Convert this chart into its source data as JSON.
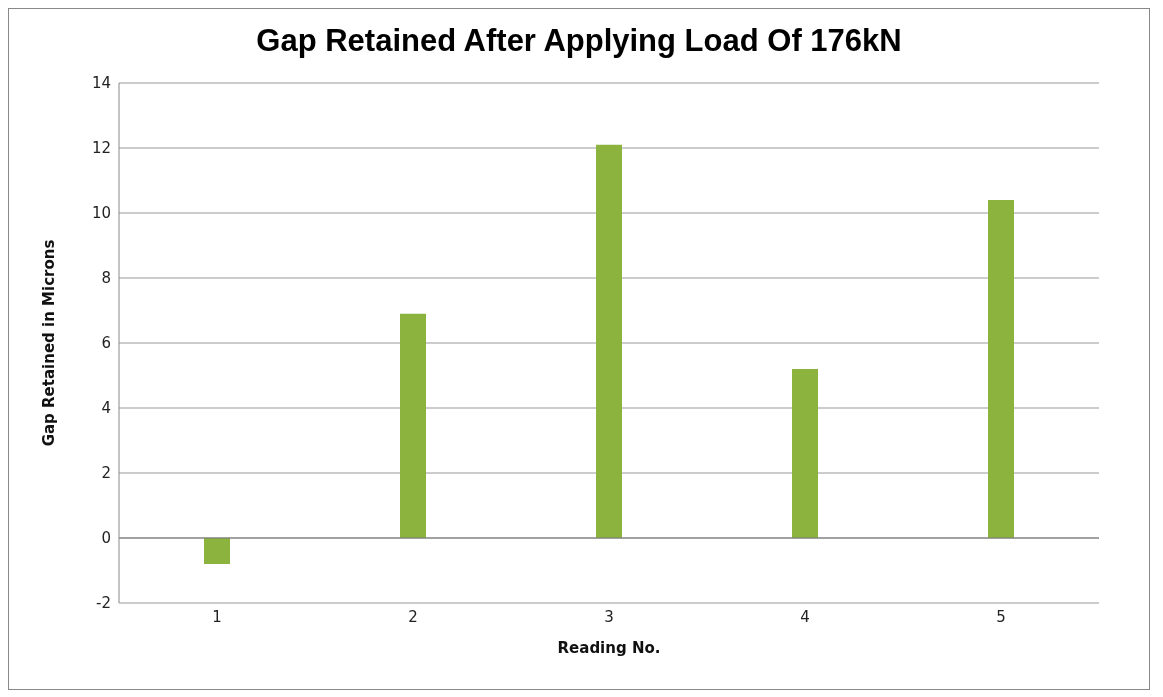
{
  "chart_data": {
    "type": "bar",
    "title": "Gap Retained After Applying Load Of 176kN",
    "xlabel": "Reading No.",
    "ylabel": "Gap Retained in Microns",
    "categories": [
      "1",
      "2",
      "3",
      "4",
      "5"
    ],
    "values": [
      -0.8,
      6.9,
      12.1,
      5.2,
      10.4
    ],
    "color": "#8db33f",
    "ylim": [
      -2,
      14
    ],
    "yticks": [
      -2,
      0,
      2,
      4,
      6,
      8,
      10,
      12,
      14
    ],
    "grid": "y"
  }
}
